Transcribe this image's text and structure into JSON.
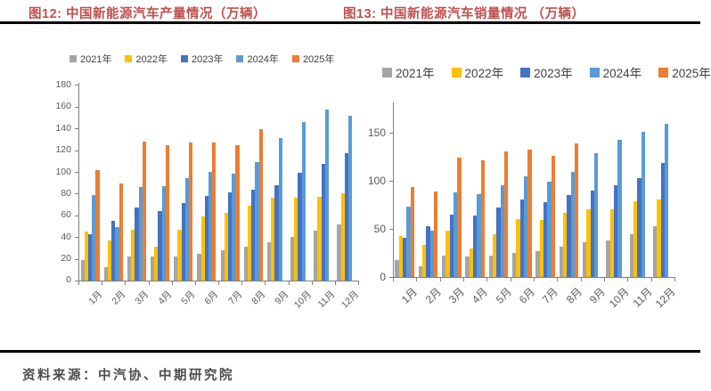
{
  "page": {
    "title_left": "图12: 中国新能源汽车产量情况（万辆）",
    "title_right": "图13: 中国新能源汽车销量情况 （万辆）",
    "source": "资料来源：中汽协、中期研究院",
    "title_color": "#C0504D"
  },
  "colors": {
    "year2021": "#A5A5A5",
    "year2022": "#FFC000",
    "year2023": "#4472C4",
    "year2024": "#5B9BD5",
    "year2025": "#ED7D31",
    "axis": "#7F7F7F",
    "axis_label": "#595959",
    "rule": "#000000"
  },
  "chart_data": [
    {
      "type": "bar",
      "title": "图12: 中国新能源汽车产量情况（万辆）",
      "unit": "万辆",
      "categories": [
        "1月",
        "2月",
        "3月",
        "4月",
        "5月",
        "6月",
        "7月",
        "8月",
        "9月",
        "10月",
        "11月",
        "12月"
      ],
      "series": [
        {
          "name": "2021年",
          "color": "#A5A5A5",
          "values": [
            19,
            12,
            22,
            22,
            22,
            25,
            28,
            31,
            35,
            40,
            46,
            52
          ]
        },
        {
          "name": "2022年",
          "color": "#FFC000",
          "values": [
            45,
            37,
            47,
            31,
            47,
            59,
            62,
            69,
            76,
            76,
            77,
            80
          ]
        },
        {
          "name": "2023年",
          "color": "#4472C4",
          "values": [
            43,
            55,
            67,
            64,
            71,
            78,
            81,
            84,
            88,
            99,
            107,
            117
          ]
        },
        {
          "name": "2024年",
          "color": "#5B9BD5",
          "values": [
            79,
            49,
            86,
            87,
            94,
            100,
            98,
            109,
            131,
            146,
            157,
            152
          ]
        },
        {
          "name": "2025年",
          "color": "#ED7D31",
          "values": [
            102,
            89,
            128,
            125,
            127,
            127,
            125,
            139,
            null,
            null,
            null,
            null
          ]
        }
      ],
      "ylim": [
        0,
        182
      ],
      "yticks": [
        0,
        20,
        40,
        60,
        80,
        100,
        120,
        140,
        160,
        180
      ],
      "xlabel": "",
      "ylabel": "",
      "legend_position": "top",
      "grid": false
    },
    {
      "type": "bar",
      "title": "图13: 中国新能源汽车销量情况 （万辆）",
      "unit": "万辆",
      "categories": [
        "1月",
        "2月",
        "3月",
        "4月",
        "5月",
        "6月",
        "7月",
        "8月",
        "9月",
        "10月",
        "11月",
        "12月"
      ],
      "series": [
        {
          "name": "2021年",
          "color": "#A5A5A5",
          "values": [
            18,
            11,
            22,
            21,
            22,
            25,
            27,
            32,
            36,
            38,
            45,
            53
          ]
        },
        {
          "name": "2022年",
          "color": "#FFC000",
          "values": [
            43,
            33,
            48,
            30,
            45,
            60,
            59,
            67,
            71,
            71,
            79,
            81
          ]
        },
        {
          "name": "2023年",
          "color": "#4472C4",
          "values": [
            41,
            53,
            65,
            64,
            72,
            81,
            78,
            85,
            90,
            96,
            103,
            119
          ]
        },
        {
          "name": "2024年",
          "color": "#5B9BD5",
          "values": [
            73,
            48,
            88,
            86,
            96,
            105,
            99,
            110,
            129,
            143,
            151,
            160
          ]
        },
        {
          "name": "2025年",
          "color": "#ED7D31",
          "values": [
            94,
            89,
            124,
            122,
            131,
            133,
            126,
            139,
            null,
            null,
            null,
            null
          ]
        }
      ],
      "ylim": [
        0,
        182
      ],
      "yticks": [
        0,
        50,
        100,
        150
      ],
      "xlabel": "",
      "ylabel": "",
      "legend_position": "top",
      "grid": false
    }
  ]
}
